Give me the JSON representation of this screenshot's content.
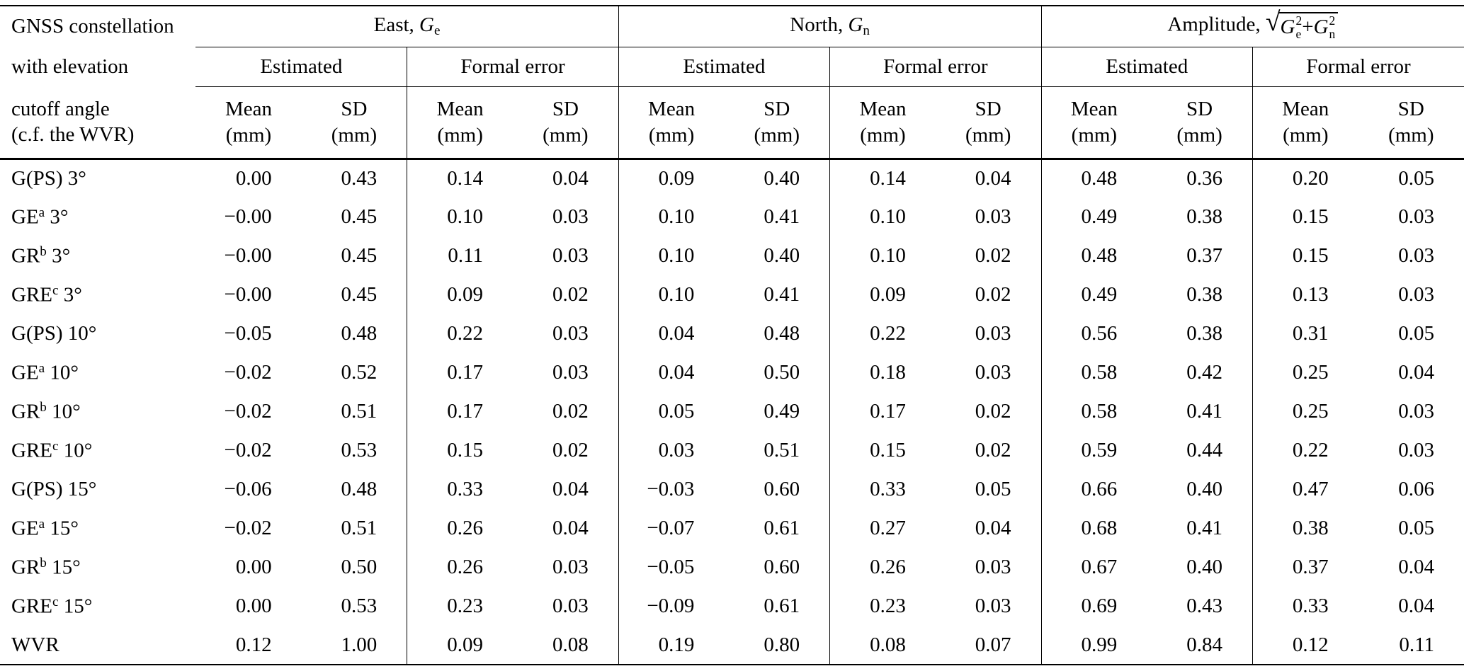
{
  "table": {
    "header": {
      "row1_label": "GNSS constellation",
      "row2_label": "with elevation",
      "row3_label_line1": "cutoff angle",
      "row3_label_line2": "(c.f. the WVR)",
      "groups": {
        "east": {
          "prefix": "East, ",
          "sym": "G",
          "sub": "e"
        },
        "north": {
          "prefix": "North, ",
          "sym": "G",
          "sub": "n"
        },
        "amp": {
          "prefix": "Amplitude, ",
          "radical": "√",
          "sym1": "G",
          "sup1": "2",
          "sub1": "e",
          "plus": " + ",
          "sym2": "G",
          "sup2": "2",
          "sub2": "n"
        }
      },
      "estimated": "Estimated",
      "formal_error": "Formal error",
      "mean": "Mean",
      "sd": "SD",
      "unit": "(mm)"
    },
    "rows": [
      {
        "label": {
          "text": "G(PS)",
          "sup": "",
          "suffix": " 3°"
        },
        "values": [
          "0.00",
          "0.43",
          "0.14",
          "0.04",
          "0.09",
          "0.40",
          "0.14",
          "0.04",
          "0.48",
          "0.36",
          "0.20",
          "0.05"
        ]
      },
      {
        "label": {
          "text": "GE",
          "sup": "a",
          "suffix": " 3°"
        },
        "values": [
          "−0.00",
          "0.45",
          "0.10",
          "0.03",
          "0.10",
          "0.41",
          "0.10",
          "0.03",
          "0.49",
          "0.38",
          "0.15",
          "0.03"
        ]
      },
      {
        "label": {
          "text": "GR",
          "sup": "b",
          "suffix": " 3°"
        },
        "values": [
          "−0.00",
          "0.45",
          "0.11",
          "0.03",
          "0.10",
          "0.40",
          "0.10",
          "0.02",
          "0.48",
          "0.37",
          "0.15",
          "0.03"
        ]
      },
      {
        "label": {
          "text": "GRE",
          "sup": "c",
          "suffix": " 3°"
        },
        "values": [
          "−0.00",
          "0.45",
          "0.09",
          "0.02",
          "0.10",
          "0.41",
          "0.09",
          "0.02",
          "0.49",
          "0.38",
          "0.13",
          "0.03"
        ]
      },
      {
        "label": {
          "text": "G(PS)",
          "sup": "",
          "suffix": " 10°"
        },
        "values": [
          "−0.05",
          "0.48",
          "0.22",
          "0.03",
          "0.04",
          "0.48",
          "0.22",
          "0.03",
          "0.56",
          "0.38",
          "0.31",
          "0.05"
        ]
      },
      {
        "label": {
          "text": "GE",
          "sup": "a",
          "suffix": " 10°"
        },
        "values": [
          "−0.02",
          "0.52",
          "0.17",
          "0.03",
          "0.04",
          "0.50",
          "0.18",
          "0.03",
          "0.58",
          "0.42",
          "0.25",
          "0.04"
        ]
      },
      {
        "label": {
          "text": "GR",
          "sup": "b",
          "suffix": " 10°"
        },
        "values": [
          "−0.02",
          "0.51",
          "0.17",
          "0.02",
          "0.05",
          "0.49",
          "0.17",
          "0.02",
          "0.58",
          "0.41",
          "0.25",
          "0.03"
        ]
      },
      {
        "label": {
          "text": "GRE",
          "sup": "c",
          "suffix": " 10°"
        },
        "values": [
          "−0.02",
          "0.53",
          "0.15",
          "0.02",
          "0.03",
          "0.51",
          "0.15",
          "0.02",
          "0.59",
          "0.44",
          "0.22",
          "0.03"
        ]
      },
      {
        "label": {
          "text": "G(PS)",
          "sup": "",
          "suffix": " 15°"
        },
        "values": [
          "−0.06",
          "0.48",
          "0.33",
          "0.04",
          "−0.03",
          "0.60",
          "0.33",
          "0.05",
          "0.66",
          "0.40",
          "0.47",
          "0.06"
        ]
      },
      {
        "label": {
          "text": "GE",
          "sup": "a",
          "suffix": " 15°"
        },
        "values": [
          "−0.02",
          "0.51",
          "0.26",
          "0.04",
          "−0.07",
          "0.61",
          "0.27",
          "0.04",
          "0.68",
          "0.41",
          "0.38",
          "0.05"
        ]
      },
      {
        "label": {
          "text": "GR",
          "sup": "b",
          "suffix": " 15°"
        },
        "values": [
          "0.00",
          "0.50",
          "0.26",
          "0.03",
          "−0.05",
          "0.60",
          "0.26",
          "0.03",
          "0.67",
          "0.40",
          "0.37",
          "0.04"
        ]
      },
      {
        "label": {
          "text": "GRE",
          "sup": "c",
          "suffix": " 15°"
        },
        "values": [
          "0.00",
          "0.53",
          "0.23",
          "0.03",
          "−0.09",
          "0.61",
          "0.23",
          "0.03",
          "0.69",
          "0.43",
          "0.33",
          "0.04"
        ]
      },
      {
        "label": {
          "text": "WVR",
          "sup": "",
          "suffix": ""
        },
        "values": [
          "0.12",
          "1.00",
          "0.09",
          "0.08",
          "0.19",
          "0.80",
          "0.08",
          "0.07",
          "0.99",
          "0.84",
          "0.12",
          "0.11"
        ]
      }
    ]
  }
}
